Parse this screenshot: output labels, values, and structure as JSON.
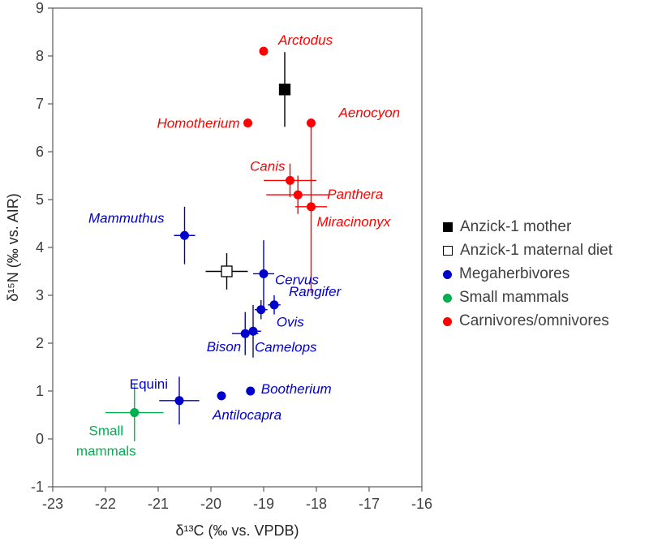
{
  "figure": {
    "background": "#ffffff",
    "border_color": "#595959",
    "tick_color": "#595959"
  },
  "chart_data": {
    "type": "scatter",
    "title": "",
    "xlabel": "δ¹³C (‰ vs. VPDB)",
    "ylabel": "δ¹⁵N (‰ vs. AIR)",
    "xlim": [
      -23,
      -16
    ],
    "ylim": [
      -1,
      9
    ],
    "xticks": [
      -23,
      -22,
      -21,
      -20,
      -19,
      -18,
      -17,
      -16
    ],
    "yticks": [
      -1,
      0,
      1,
      2,
      3,
      4,
      5,
      6,
      7,
      8,
      9
    ],
    "grid": false,
    "legend_position": "right-middle",
    "series": [
      {
        "name": "Anzick-1 mother",
        "marker": "square",
        "fill": "filled",
        "color": "#000000",
        "points": [
          {
            "taxon": "Anzick-1 mother",
            "x": -18.6,
            "y": 7.3,
            "xerr": 0.1,
            "yerr": 0.78,
            "label": ""
          }
        ]
      },
      {
        "name": "Anzick-1 maternal diet",
        "marker": "square",
        "fill": "open",
        "color": "#000000",
        "points": [
          {
            "taxon": "Anzick-1 maternal diet",
            "x": -19.7,
            "y": 3.5,
            "xerr": 0.4,
            "yerr": 0.38,
            "label": ""
          }
        ]
      },
      {
        "name": "Megaherbivores",
        "marker": "circle",
        "fill": "filled",
        "color": "#0000CC",
        "points": [
          {
            "taxon": "Mammuthus",
            "x": -20.5,
            "y": 4.25,
            "xerr": 0.2,
            "yerr": 0.6,
            "label": "Mammuthus",
            "label_dx": -25,
            "label_dy": -16,
            "label_anchor": "end",
            "label_italic": true
          },
          {
            "taxon": "Cervus",
            "x": -19.0,
            "y": 3.45,
            "xerr": 0.2,
            "yerr": 0.7,
            "label": "Cervus",
            "label_dx": 14,
            "label_dy": 13,
            "label_anchor": "start",
            "label_italic": true
          },
          {
            "taxon": "Rangifer",
            "x": -18.8,
            "y": 2.8,
            "xerr": 0.12,
            "yerr": 0.2,
            "label": "Rangifer",
            "label_dx": 18,
            "label_dy": -11,
            "label_anchor": "start",
            "label_italic": true
          },
          {
            "taxon": "Ovis",
            "x": -19.05,
            "y": 2.7,
            "xerr": 0.12,
            "yerr": 0.2,
            "label": "Ovis",
            "label_dx": 19,
            "label_dy": 21,
            "label_anchor": "start",
            "label_italic": true
          },
          {
            "taxon": "Bison",
            "x": -19.35,
            "y": 2.2,
            "xerr": 0.25,
            "yerr": 0.45,
            "label": "Bison",
            "label_dx": -5,
            "label_dy": 22,
            "label_anchor": "end",
            "label_italic": true
          },
          {
            "taxon": "Camelops",
            "x": -19.2,
            "y": 2.25,
            "xerr": 0.15,
            "yerr": 0.55,
            "label": "Camelops",
            "label_dx": 2,
            "label_dy": 25,
            "label_anchor": "start",
            "label_italic": true
          },
          {
            "taxon": "Equini",
            "x": -20.6,
            "y": 0.8,
            "xerr": 0.38,
            "yerr": 0.5,
            "label": "Equini",
            "label_dx": -14,
            "label_dy": -15,
            "label_anchor": "end",
            "label_italic": false
          },
          {
            "taxon": "Antilocapra",
            "x": -19.8,
            "y": 0.9,
            "xerr": 0,
            "yerr": 0,
            "label": "Antilocapra",
            "label_dx": -11,
            "label_dy": 29,
            "label_anchor": "start",
            "label_italic": true
          },
          {
            "taxon": "Bootherium",
            "x": -19.25,
            "y": 1.0,
            "xerr": 0,
            "yerr": 0,
            "label": "Bootherium",
            "label_dx": 13,
            "label_dy": 3,
            "label_anchor": "start",
            "label_italic": true
          }
        ]
      },
      {
        "name": "Small mammals",
        "marker": "circle",
        "fill": "filled",
        "color": "#00B050",
        "points": [
          {
            "taxon": "Small mammals",
            "x": -21.45,
            "y": 0.55,
            "xerr": 0.55,
            "yerr": 0.6,
            "label": "Small\nmammals",
            "label_dx": -35,
            "label_dy": 28,
            "label_anchor": "middle",
            "label_italic": false
          }
        ]
      },
      {
        "name": "Carnivores/omnivores",
        "marker": "circle",
        "fill": "filled",
        "color": "#FF0000",
        "points": [
          {
            "taxon": "Arctodus",
            "x": -19.0,
            "y": 8.1,
            "xerr": 0,
            "yerr": 0,
            "label": "Arctodus",
            "label_dx": 18,
            "label_dy": -8,
            "label_anchor": "start",
            "label_italic": true
          },
          {
            "taxon": "Homotherium",
            "x": -19.3,
            "y": 6.6,
            "xerr": 0,
            "yerr": 0,
            "label": "Homotherium",
            "label_dx": -10,
            "label_dy": 6,
            "label_anchor": "end",
            "label_italic": true
          },
          {
            "taxon": "Aenocyon",
            "x": -18.1,
            "y": 6.6,
            "xerr": 0,
            "yerr": 0,
            "label": "Aenocyon",
            "label_dx": 34,
            "label_dy": -7,
            "label_anchor": "start",
            "label_italic": true
          },
          {
            "taxon": "Canis",
            "x": -18.5,
            "y": 5.4,
            "xerr": 0.5,
            "yerr": 0.35,
            "label": "Canis",
            "label_dx": -6,
            "label_dy": -12,
            "label_anchor": "end",
            "label_italic": true
          },
          {
            "taxon": "Panthera",
            "x": -18.35,
            "y": 5.1,
            "xerr": 0.6,
            "yerr": 0.4,
            "label": "Panthera",
            "label_dx": 36,
            "label_dy": 5,
            "label_anchor": "start",
            "label_italic": true
          },
          {
            "taxon": "Miracinonyx",
            "x": -18.1,
            "y": 4.85,
            "xerr": 0.3,
            "yerr": 1.8,
            "label": "Miracinonyx",
            "label_dx": 7,
            "label_dy": 24,
            "label_anchor": "start",
            "label_italic": true
          }
        ]
      }
    ]
  },
  "legend": {
    "items": [
      {
        "label": "Anzick-1 mother",
        "marker": "square-filled",
        "color": "#000000"
      },
      {
        "label": "Anzick-1 maternal diet",
        "marker": "square-open",
        "color": "#000000"
      },
      {
        "label": "Megaherbivores",
        "marker": "circle",
        "color": "#0000CC"
      },
      {
        "label": "Small mammals",
        "marker": "circle",
        "color": "#00B050"
      },
      {
        "label": "Carnivores/omnivores",
        "marker": "circle",
        "color": "#FF0000"
      }
    ]
  }
}
